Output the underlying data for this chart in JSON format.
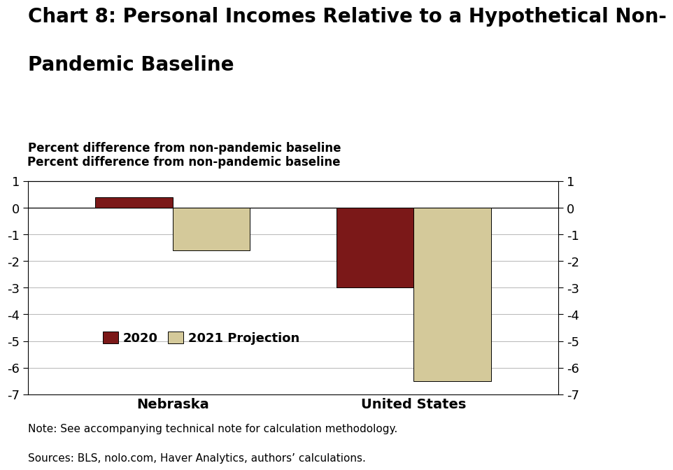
{
  "title_line1": "Chart 8: Personal Incomes Relative to a Hypothetical Non-",
  "title_line2": "Pandemic Baseline",
  "ylabel_left": "Percent difference from non-pandemic baseline",
  "categories": [
    "Nebraska",
    "United States"
  ],
  "series": {
    "2020": [
      0.4,
      -3.0
    ],
    "2021 Projection": [
      -1.6,
      -6.5
    ]
  },
  "colors": {
    "2020": "#7B1818",
    "2021 Projection": "#D4C99A"
  },
  "ylim": [
    -7,
    1
  ],
  "yticks": [
    -7,
    -6,
    -5,
    -4,
    -3,
    -2,
    -1,
    0,
    1
  ],
  "bar_width": 0.32,
  "note": "Note: See accompanying technical note for calculation methodology.",
  "sources": "Sources: BLS, nolo.com, Haver Analytics, authors’ calculations.",
  "background_color": "#FFFFFF",
  "title_fontsize": 20,
  "axis_label_fontsize": 12,
  "tick_fontsize": 13,
  "legend_fontsize": 13,
  "note_fontsize": 11,
  "category_fontsize": 14
}
